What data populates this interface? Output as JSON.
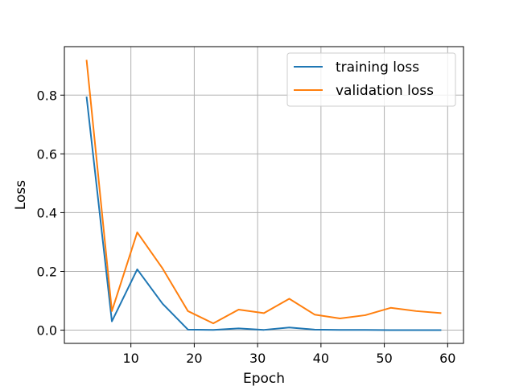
{
  "chart_data": {
    "type": "line",
    "title": "",
    "xlabel": "Epoch",
    "ylabel": "Loss",
    "xlim": [
      -0.5,
      62.5
    ],
    "ylim": [
      -0.045,
      0.965
    ],
    "xticks": [
      10,
      20,
      30,
      40,
      50,
      60
    ],
    "yticks": [
      0.0,
      0.2,
      0.4,
      0.6,
      0.8
    ],
    "ytick_labels": [
      "0.0",
      "0.2",
      "0.4",
      "0.6",
      "0.8"
    ],
    "grid": true,
    "legend_position": "top-right",
    "x": [
      3,
      7,
      11,
      15,
      19,
      23,
      27,
      31,
      35,
      39,
      43,
      47,
      51,
      55,
      59
    ],
    "series": [
      {
        "name": "training loss",
        "color": "#1f77b4",
        "values": [
          0.795,
          0.03,
          0.207,
          0.09,
          0.002,
          0.001,
          0.006,
          0.001,
          0.009,
          0.002,
          0.001,
          0.001,
          0.0,
          0.0,
          0.0
        ]
      },
      {
        "name": "validation loss",
        "color": "#ff7f0e",
        "values": [
          0.92,
          0.065,
          0.333,
          0.21,
          0.065,
          0.023,
          0.07,
          0.058,
          0.107,
          0.053,
          0.04,
          0.051,
          0.076,
          0.065,
          0.058
        ]
      }
    ]
  }
}
